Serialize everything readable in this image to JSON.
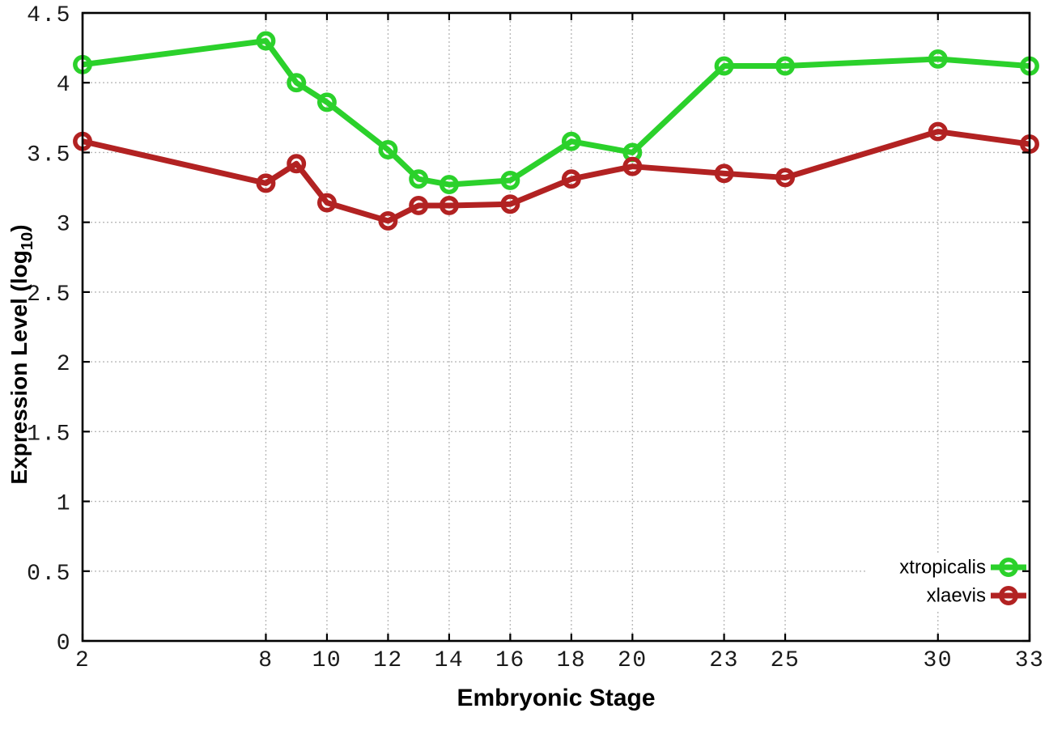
{
  "figure": {
    "xlabel": "Embryonic Stage",
    "ylabel": "Expression Level (log10)",
    "ylabel_main": "Expression Level (log",
    "ylabel_sub": "10",
    "ylabel_close": ")"
  },
  "chart_data": {
    "type": "line",
    "title": "",
    "xlabel": "Embryonic Stage",
    "ylabel": "Expression Level (log10)",
    "x": [
      2,
      8,
      9,
      10,
      12,
      13,
      14,
      16,
      18,
      20,
      23,
      25,
      30,
      33
    ],
    "series": [
      {
        "name": "xtropicalis",
        "color": "#2bd12b",
        "marker": "open-circle",
        "values": [
          4.13,
          4.3,
          4.0,
          3.86,
          3.52,
          3.31,
          3.27,
          3.3,
          3.58,
          3.5,
          4.12,
          4.12,
          4.17,
          4.12
        ]
      },
      {
        "name": "xlaevis",
        "color": "#b22222",
        "marker": "open-circle",
        "values": [
          3.58,
          3.28,
          3.42,
          3.14,
          3.01,
          3.12,
          3.12,
          3.13,
          3.31,
          3.4,
          3.35,
          3.32,
          3.65,
          3.56
        ]
      }
    ],
    "xticks": [
      2,
      8,
      10,
      12,
      14,
      16,
      18,
      20,
      23,
      25,
      30,
      33
    ],
    "yticks": [
      0,
      0.5,
      1,
      1.5,
      2,
      2.5,
      3,
      3.5,
      4,
      4.5
    ],
    "xlim": [
      2,
      33
    ],
    "ylim": [
      0,
      4.5
    ],
    "grid": true,
    "grid_color": "#b9b9b9",
    "axis_color": "#000000",
    "tick_label_color": "#1a1a1a",
    "legend_position": "bottom-right"
  }
}
